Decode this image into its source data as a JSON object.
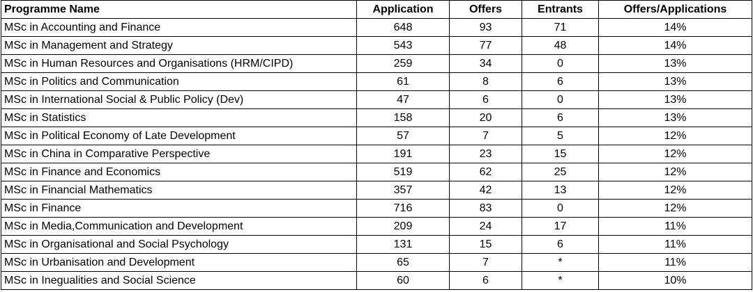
{
  "table": {
    "header": [
      "Programme Name",
      "Application",
      "Offers",
      "Entrants",
      "Offers/Applications"
    ],
    "rows": [
      [
        "MSc in Accounting and Finance",
        648,
        93,
        71,
        "14%"
      ],
      [
        "MSc in Management and Strategy",
        543,
        77,
        48,
        "14%"
      ],
      [
        "MSc in Human Resources and Organisations (HRM/CIPD)",
        259,
        34,
        0,
        "13%"
      ],
      [
        "MSc in Politics and Communication",
        61,
        8,
        6,
        "13%"
      ],
      [
        "MSc in International Social & Public Policy (Dev)",
        47,
        6,
        0,
        "13%"
      ],
      [
        "MSc in Statistics",
        158,
        20,
        6,
        "13%"
      ],
      [
        "MSc in Political Economy of Late Development",
        57,
        7,
        5,
        "12%"
      ],
      [
        "MSc in China in Comparative Perspective",
        191,
        23,
        15,
        "12%"
      ],
      [
        "MSc in Finance and Economics",
        519,
        62,
        25,
        "12%"
      ],
      [
        "MSc in Financial Mathematics",
        357,
        42,
        13,
        "12%"
      ],
      [
        "MSc in Finance",
        716,
        83,
        0,
        "12%"
      ],
      [
        "MSc in Media,Communication and Development",
        209,
        24,
        17,
        "11%"
      ],
      [
        "MSc in Organisational and Social Psychology",
        131,
        15,
        6,
        "11%"
      ],
      [
        "MSc in Urbanisation and Development",
        65,
        7,
        "*",
        "11%"
      ],
      [
        "MSc in Inegualities and Social Science",
        60,
        6,
        "*",
        "10%"
      ]
    ]
  }
}
